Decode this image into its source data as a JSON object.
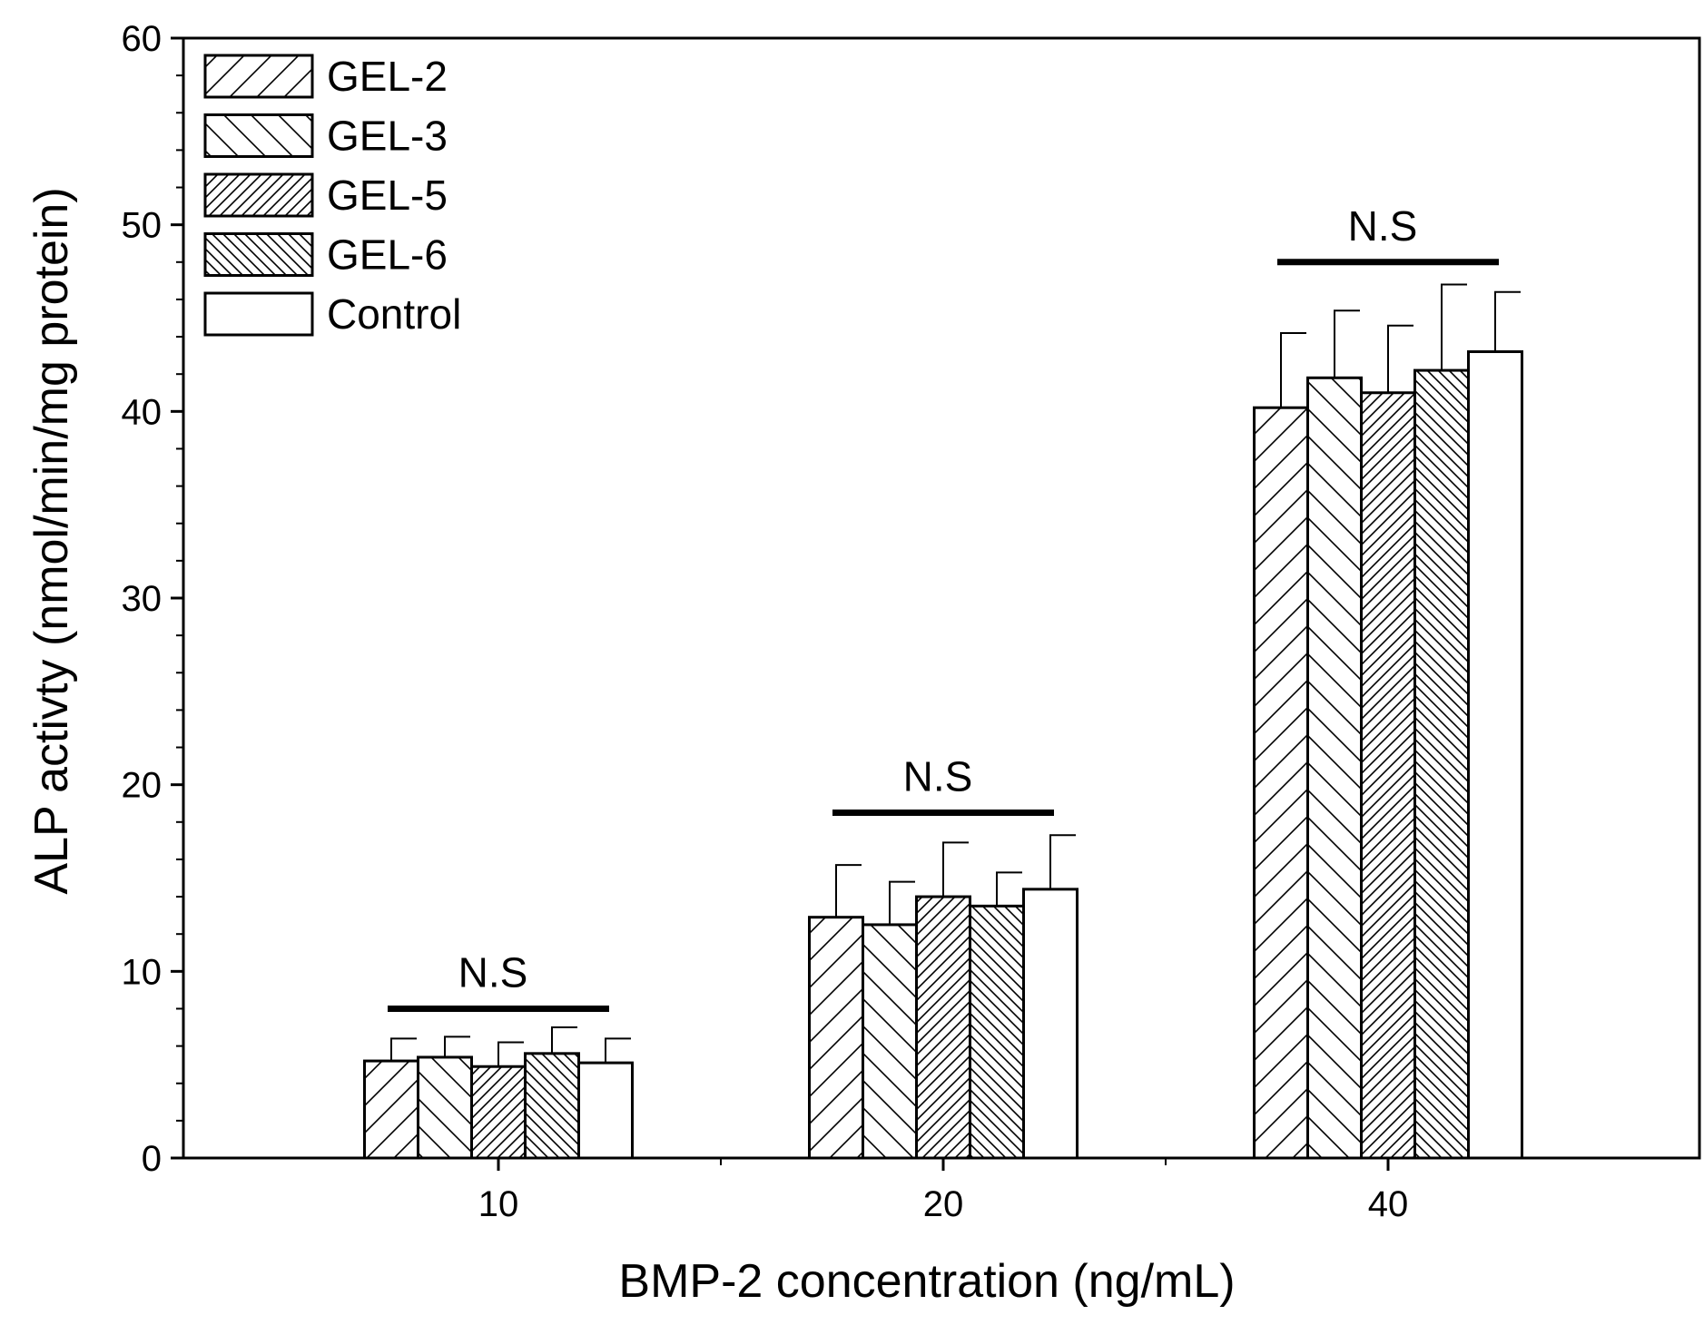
{
  "chart_data": {
    "type": "bar",
    "title": "",
    "xlabel": "BMP-2 concentration (ng/mL)",
    "ylabel": "ALP activty (nmol/min/mg protein)",
    "categories": [
      "10",
      "20",
      "40"
    ],
    "ylim": [
      0,
      60
    ],
    "yticks": [
      "0",
      "10",
      "20",
      "30",
      "40",
      "50",
      "60"
    ],
    "legend_position": "top-left",
    "series": [
      {
        "name": "GEL-2",
        "pattern": "diag-right-wide",
        "values": [
          5.2,
          12.9,
          40.2
        ],
        "errors": [
          1.2,
          2.8,
          4.0
        ]
      },
      {
        "name": "GEL-3",
        "pattern": "diag-left-wide",
        "values": [
          5.4,
          12.5,
          41.8
        ],
        "errors": [
          1.1,
          2.3,
          3.6
        ]
      },
      {
        "name": "GEL-5",
        "pattern": "diag-right-dense",
        "values": [
          4.9,
          14.0,
          41.0
        ],
        "errors": [
          1.3,
          2.9,
          3.6
        ]
      },
      {
        "name": "GEL-6",
        "pattern": "diag-left-dense",
        "values": [
          5.6,
          13.5,
          42.2
        ],
        "errors": [
          1.4,
          1.8,
          4.6
        ]
      },
      {
        "name": "Control",
        "pattern": "none",
        "values": [
          5.1,
          14.4,
          43.2
        ],
        "errors": [
          1.3,
          2.9,
          3.2
        ]
      }
    ],
    "annotations": [
      {
        "category": "10",
        "text": "N.S",
        "bar_value": 8.0
      },
      {
        "category": "20",
        "text": "N.S",
        "bar_value": 18.5
      },
      {
        "category": "40",
        "text": "N.S",
        "bar_value": 48.0
      }
    ]
  }
}
